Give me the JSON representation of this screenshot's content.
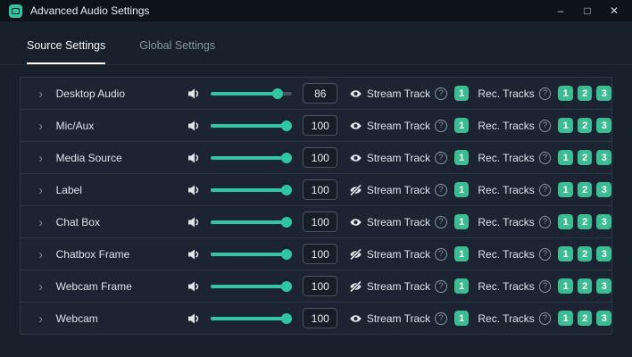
{
  "window": {
    "title": "Advanced Audio Settings",
    "controls": {
      "minimize": "–",
      "maximize": "□",
      "close": "✕"
    }
  },
  "tabs": [
    {
      "label": "Source Settings",
      "active": true
    },
    {
      "label": "Global Settings",
      "active": false
    }
  ],
  "labels": {
    "stream_track": "Stream Track",
    "rec_tracks": "Rec. Tracks",
    "help": "?",
    "stream_track_button": "1",
    "rec_track_buttons": [
      "1",
      "2",
      "3"
    ],
    "chevron": "›"
  },
  "rows": [
    {
      "name": "Desktop Audio",
      "volume": "86",
      "stream_track_visible": true
    },
    {
      "name": "Mic/Aux",
      "volume": "100",
      "stream_track_visible": true
    },
    {
      "name": "Media Source",
      "volume": "100",
      "stream_track_visible": true
    },
    {
      "name": "Label",
      "volume": "100",
      "stream_track_visible": false
    },
    {
      "name": "Chat Box",
      "volume": "100",
      "stream_track_visible": true
    },
    {
      "name": "Chatbox Frame",
      "volume": "100",
      "stream_track_visible": false
    },
    {
      "name": "Webcam Frame",
      "volume": "100",
      "stream_track_visible": false
    },
    {
      "name": "Webcam",
      "volume": "100",
      "stream_track_visible": true
    }
  ],
  "colors": {
    "accent": "#2fc7a1",
    "track_button_green": "#3bbc92",
    "titlebar_bg": "#0d1318",
    "content_bg": "#18212b",
    "row_bg": "#1b2430",
    "row_border": "#2b3846"
  }
}
